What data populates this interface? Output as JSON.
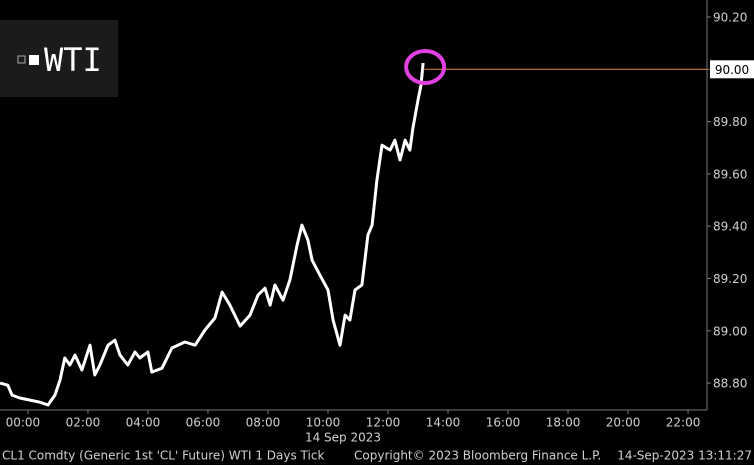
{
  "chart_data": {
    "type": "line",
    "date": "14 Sep 2023",
    "source": "CL1 Comdty (Generic 1st 'CL' Future) WTI 1 Days  Tick",
    "copyright": "Copyright© 2023 Bloomberg Finance L.P.",
    "timestamp": "14-Sep-2023 13:11:27",
    "x": [
      -0.93,
      -0.67,
      -0.53,
      -0.27,
      0.07,
      0.4,
      0.67,
      0.9,
      1.07,
      1.23,
      1.4,
      1.57,
      1.8,
      2.07,
      2.23,
      2.4,
      2.67,
      2.9,
      3.07,
      3.33,
      3.57,
      3.73,
      4.0,
      4.13,
      4.47,
      4.8,
      5.23,
      5.57,
      5.9,
      6.23,
      6.47,
      6.73,
      7.07,
      7.4,
      7.67,
      7.9,
      8.07,
      8.23,
      8.5,
      8.73,
      8.97,
      9.13,
      9.33,
      9.47,
      9.73,
      10.0,
      10.17,
      10.4,
      10.57,
      10.73,
      10.9,
      11.13,
      11.33,
      11.47,
      11.63,
      11.8,
      12.07,
      12.23,
      12.4,
      12.57,
      12.73,
      12.83,
      13.0,
      13.1,
      13.17
    ],
    "series": [
      {
        "name": "WTI",
        "color": "#ffffff",
        "values": [
          88.8,
          88.792,
          88.754,
          88.743,
          88.735,
          88.727,
          88.716,
          88.754,
          88.811,
          88.896,
          88.869,
          88.907,
          88.85,
          88.945,
          88.831,
          88.869,
          88.945,
          88.964,
          88.907,
          88.869,
          88.919,
          88.896,
          88.919,
          88.842,
          88.857,
          88.934,
          88.957,
          88.945,
          89.003,
          89.049,
          89.148,
          89.098,
          89.018,
          89.06,
          89.137,
          89.163,
          89.098,
          89.175,
          89.117,
          89.194,
          89.328,
          89.404,
          89.347,
          89.27,
          89.213,
          89.156,
          89.041,
          88.945,
          89.06,
          89.041,
          89.156,
          89.175,
          89.366,
          89.404,
          89.576,
          89.71,
          89.691,
          89.729,
          89.653,
          89.729,
          89.691,
          89.775,
          89.882,
          89.939,
          90.024
        ]
      }
    ],
    "last_value": 90.0,
    "last_color": "#e8843c",
    "xlim": [
      -0.93,
      22.63
    ],
    "xticks": [
      {
        "value": 0,
        "label": "00:00"
      },
      {
        "value": 2,
        "label": "02:00"
      },
      {
        "value": 4,
        "label": "04:00"
      },
      {
        "value": 6,
        "label": "06:00"
      },
      {
        "value": 8,
        "label": "08:00"
      },
      {
        "value": 10,
        "label": "10:00"
      },
      {
        "value": 12,
        "label": "12:00"
      },
      {
        "value": 14,
        "label": "14:00"
      },
      {
        "value": 16,
        "label": "16:00"
      },
      {
        "value": 18,
        "label": "18:00"
      },
      {
        "value": 20,
        "label": "20:00"
      },
      {
        "value": 22,
        "label": "22:00"
      }
    ],
    "ylim": [
      88.697,
      90.265
    ],
    "yticks": [
      {
        "value": 88.8,
        "label": "88.80"
      },
      {
        "value": 89.0,
        "label": "89.00"
      },
      {
        "value": 89.2,
        "label": "89.20"
      },
      {
        "value": 89.4,
        "label": "89.40"
      },
      {
        "value": 89.6,
        "label": "89.60"
      },
      {
        "value": 89.8,
        "label": "89.80"
      },
      {
        "value": 90.0,
        "label": "90.00"
      },
      {
        "value": 90.2,
        "label": "90.20"
      }
    ],
    "grid": false
  }
}
